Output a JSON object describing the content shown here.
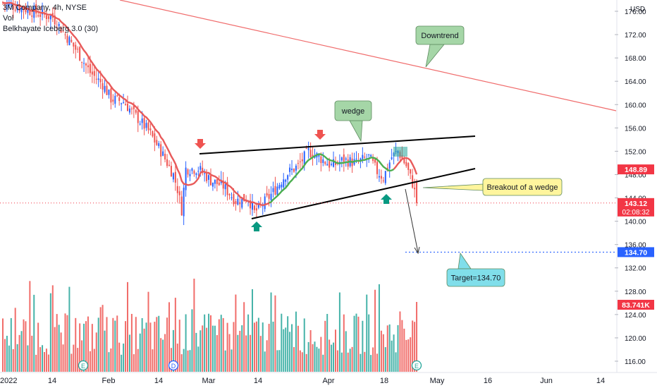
{
  "header": {
    "symbol_line": "3M Company, 4h, NYSE",
    "indicator_vol": "Vol",
    "indicator_iceberg": "Belkhayate Iceberg 3.0 (30)"
  },
  "currency": "USD",
  "colors": {
    "up": "#26a69a",
    "down": "#ef5350",
    "ma_red": "#e85a5a",
    "ma_green": "#4caf50",
    "downtrend_line": "#f06c6c",
    "wedge_line": "#000000",
    "price_tag_red": "#f23645",
    "price_tag_blue": "#2962ff",
    "callout_green": "#a5d6a7",
    "callout_yellow": "#fff59d",
    "callout_cyan": "#80deea"
  },
  "annotations": {
    "downtrend": "Downtrend",
    "wedge": "wedge",
    "breakout": "Breakout of a wedge",
    "target": "Target=134.70"
  },
  "events": [
    "E",
    "D",
    "E"
  ],
  "price_tags": [
    {
      "value": 148.89,
      "text": "148.89",
      "style": "red"
    },
    {
      "value": 143.12,
      "text": "143.12",
      "sub": "02:08:32",
      "style": "red"
    },
    {
      "value": 134.7,
      "text": "134.70",
      "style": "blue"
    }
  ],
  "volume_tag": "83.741K",
  "chart_data": {
    "type": "candlestick",
    "y_axis": {
      "min": 114,
      "max": 178,
      "ticks": [
        "116.00",
        "120.00",
        "124.00",
        "128.00",
        "132.00",
        "136.00",
        "140.00",
        "144.00",
        "148.00",
        "152.00",
        "156.00",
        "160.00",
        "164.00",
        "168.00",
        "172.00",
        "176.00"
      ]
    },
    "x_axis": {
      "ticks": [
        "2022",
        "14",
        "Feb",
        "14",
        "Mar",
        "14",
        "Apr",
        "18",
        "May",
        "16",
        "Jun",
        "14"
      ]
    },
    "price_keypoints": [
      [
        0,
        177.5
      ],
      [
        10,
        176.5
      ],
      [
        18,
        175.5
      ],
      [
        24,
        175
      ],
      [
        30,
        172
      ],
      [
        36,
        169
      ],
      [
        42,
        165.5
      ],
      [
        48,
        163.5
      ],
      [
        52,
        161
      ],
      [
        58,
        160.5
      ],
      [
        64,
        158
      ],
      [
        70,
        155.5
      ],
      [
        76,
        152
      ],
      [
        82,
        148
      ],
      [
        84,
        145.5
      ],
      [
        86,
        142
      ],
      [
        88,
        149
      ],
      [
        94,
        149
      ],
      [
        100,
        147
      ],
      [
        106,
        146
      ],
      [
        112,
        143.5
      ],
      [
        118,
        144
      ],
      [
        121,
        141.5
      ],
      [
        124,
        142.5
      ],
      [
        130,
        145
      ],
      [
        136,
        148
      ],
      [
        142,
        149.5
      ],
      [
        147,
        152
      ],
      [
        152,
        151
      ],
      [
        158,
        149.5
      ],
      [
        164,
        150.5
      ],
      [
        170,
        150
      ],
      [
        176,
        151
      ],
      [
        180,
        148.5
      ],
      [
        183,
        147.5
      ],
      [
        187,
        151
      ],
      [
        190,
        152
      ],
      [
        194,
        149.5
      ],
      [
        197,
        146.5
      ],
      [
        199,
        143.5
      ]
    ],
    "wedge_upper": [
      [
        95,
        152.0
      ],
      [
        230,
        155.0
      ]
    ],
    "wedge_lower": [
      [
        121,
        140.5
      ],
      [
        230,
        150.0
      ]
    ],
    "downtrend": [
      [
        0,
        180.0
      ],
      [
        300,
        160.0
      ]
    ],
    "target": 134.7
  }
}
